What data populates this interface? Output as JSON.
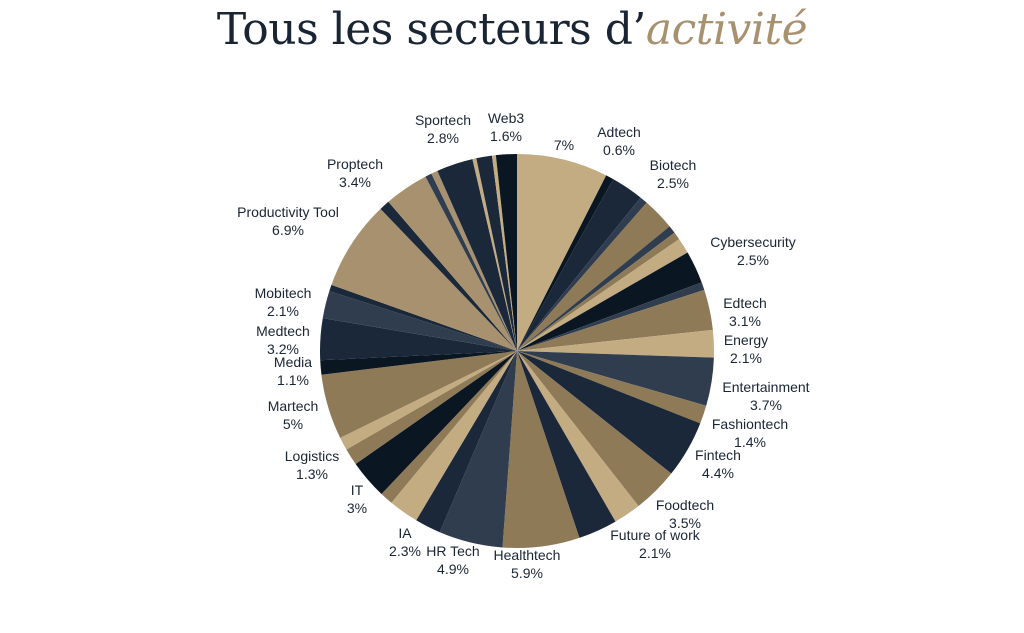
{
  "title": {
    "main": "Tous les secteurs d’",
    "accent": "activité"
  },
  "colors": {
    "title": "#1a2533",
    "title_accent": "#a8916f",
    "slice_tan": "#c4ac82",
    "slice_brown": "#8e7a57",
    "slice_dark_navy": "#0a1621",
    "slice_navy": "#1b2839",
    "slice_slate": "#2f3d4f"
  },
  "chart_data": {
    "type": "pie",
    "title": "Tous les secteurs d’activité",
    "slices": [
      {
        "name": "",
        "value_label": "7%",
        "value": 7.0,
        "color": "#c4ac82"
      },
      {
        "name": "Adtech",
        "value_label": "0.6%",
        "value": 0.6,
        "color": "#0a1621"
      },
      {
        "name": "",
        "value_label": "",
        "value": 2.5,
        "color": "#1b2839"
      },
      {
        "name": "",
        "value_label": "",
        "value": 0.6,
        "color": "#2f3d4f"
      },
      {
        "name": "Biotech",
        "value_label": "2.5%",
        "value": 2.5,
        "color": "#8e7a57"
      },
      {
        "name": "",
        "value_label": "",
        "value": 0.6,
        "color": "#2f3d4f"
      },
      {
        "name": "",
        "value_label": "",
        "value": 0.6,
        "color": "#8e7a57"
      },
      {
        "name": "",
        "value_label": "",
        "value": 1.2,
        "color": "#c4ac82"
      },
      {
        "name": "Cybersecurity",
        "value_label": "2.5%",
        "value": 2.5,
        "color": "#0a1621"
      },
      {
        "name": "",
        "value_label": "",
        "value": 0.6,
        "color": "#2f3d4f"
      },
      {
        "name": "Edtech",
        "value_label": "3.1%",
        "value": 3.1,
        "color": "#8e7a57"
      },
      {
        "name": "Energy",
        "value_label": "2.1%",
        "value": 2.1,
        "color": "#c4ac82"
      },
      {
        "name": "Entertainment",
        "value_label": "3.7%",
        "value": 3.7,
        "color": "#2f3d4f"
      },
      {
        "name": "Fashiontech",
        "value_label": "1.4%",
        "value": 1.4,
        "color": "#8e7a57"
      },
      {
        "name": "Fintech",
        "value_label": "4.4%",
        "value": 4.4,
        "color": "#1b2839"
      },
      {
        "name": "Foodtech",
        "value_label": "3.5%",
        "value": 3.5,
        "color": "#8e7a57"
      },
      {
        "name": "Future of work",
        "value_label": "2.1%",
        "value": 2.1,
        "color": "#c4ac82"
      },
      {
        "name": "",
        "value_label": "",
        "value": 3.0,
        "color": "#1b2839"
      },
      {
        "name": "Healthtech",
        "value_label": "5.9%",
        "value": 5.9,
        "color": "#8e7a57"
      },
      {
        "name": "HR Tech",
        "value_label": "4.9%",
        "value": 4.9,
        "color": "#2f3d4f"
      },
      {
        "name": "",
        "value_label": "",
        "value": 2.0,
        "color": "#1b2839"
      },
      {
        "name": "IA",
        "value_label": "2.3%",
        "value": 2.3,
        "color": "#c4ac82"
      },
      {
        "name": "",
        "value_label": "",
        "value": 1.0,
        "color": "#8e7a57"
      },
      {
        "name": "IT",
        "value_label": "3%",
        "value": 3.0,
        "color": "#0a1621"
      },
      {
        "name": "Logistics",
        "value_label": "1.3%",
        "value": 1.3,
        "color": "#8e7a57"
      },
      {
        "name": "",
        "value_label": "",
        "value": 1.0,
        "color": "#c4ac82"
      },
      {
        "name": "Martech",
        "value_label": "5%",
        "value": 5.0,
        "color": "#8e7a57"
      },
      {
        "name": "Media",
        "value_label": "1.1%",
        "value": 1.1,
        "color": "#0a1621"
      },
      {
        "name": "Medtech",
        "value_label": "3.2%",
        "value": 3.2,
        "color": "#1b2839"
      },
      {
        "name": "Mobitech",
        "value_label": "2.1%",
        "value": 2.1,
        "color": "#2f3d4f"
      },
      {
        "name": "",
        "value_label": "",
        "value": 0.5,
        "color": "#1b2839"
      },
      {
        "name": "Productivity Tool",
        "value_label": "6.9%",
        "value": 6.9,
        "color": "#a8916f"
      },
      {
        "name": "",
        "value_label": "",
        "value": 0.8,
        "color": "#1b2839"
      },
      {
        "name": "Proptech",
        "value_label": "3.4%",
        "value": 3.4,
        "color": "#a8916f"
      },
      {
        "name": "",
        "value_label": "",
        "value": 0.5,
        "color": "#2f3d4f"
      },
      {
        "name": "",
        "value_label": "",
        "value": 0.5,
        "color": "#a8916f"
      },
      {
        "name": "Sportech",
        "value_label": "2.8%",
        "value": 2.8,
        "color": "#1b2839"
      },
      {
        "name": "",
        "value_label": "",
        "value": 0.3,
        "color": "#c4ac82"
      },
      {
        "name": "",
        "value_label": "",
        "value": 1.2,
        "color": "#1b2839"
      },
      {
        "name": "",
        "value_label": "",
        "value": 0.3,
        "color": "#c4ac82"
      },
      {
        "name": "Web3",
        "value_label": "1.6%",
        "value": 1.6,
        "color": "#0a1621"
      }
    ],
    "labels": [
      {
        "name": "",
        "value_label": "7%"
      },
      {
        "name": "Adtech",
        "value_label": "0.6%"
      },
      {
        "name": "Biotech",
        "value_label": "2.5%"
      },
      {
        "name": "Cybersecurity",
        "value_label": "2.5%"
      },
      {
        "name": "Edtech",
        "value_label": "3.1%"
      },
      {
        "name": "Energy",
        "value_label": "2.1%"
      },
      {
        "name": "Entertainment",
        "value_label": "3.7%"
      },
      {
        "name": "Fashiontech",
        "value_label": "1.4%"
      },
      {
        "name": "Fintech",
        "value_label": "4.4%"
      },
      {
        "name": "Foodtech",
        "value_label": "3.5%"
      },
      {
        "name": "Future of work",
        "value_label": "2.1%"
      },
      {
        "name": "Healthtech",
        "value_label": "5.9%"
      },
      {
        "name": "HR Tech",
        "value_label": "4.9%"
      },
      {
        "name": "IA",
        "value_label": "2.3%"
      },
      {
        "name": "IT",
        "value_label": "3%"
      },
      {
        "name": "Logistics",
        "value_label": "1.3%"
      },
      {
        "name": "Martech",
        "value_label": "5%"
      },
      {
        "name": "Media",
        "value_label": "1.1%"
      },
      {
        "name": "Medtech",
        "value_label": "3.2%"
      },
      {
        "name": "Mobitech",
        "value_label": "2.1%"
      },
      {
        "name": "Productivity Tool",
        "value_label": "6.9%"
      },
      {
        "name": "Proptech",
        "value_label": "3.4%"
      },
      {
        "name": "Sportech",
        "value_label": "2.8%"
      },
      {
        "name": "Web3",
        "value_label": "1.6%"
      }
    ]
  }
}
